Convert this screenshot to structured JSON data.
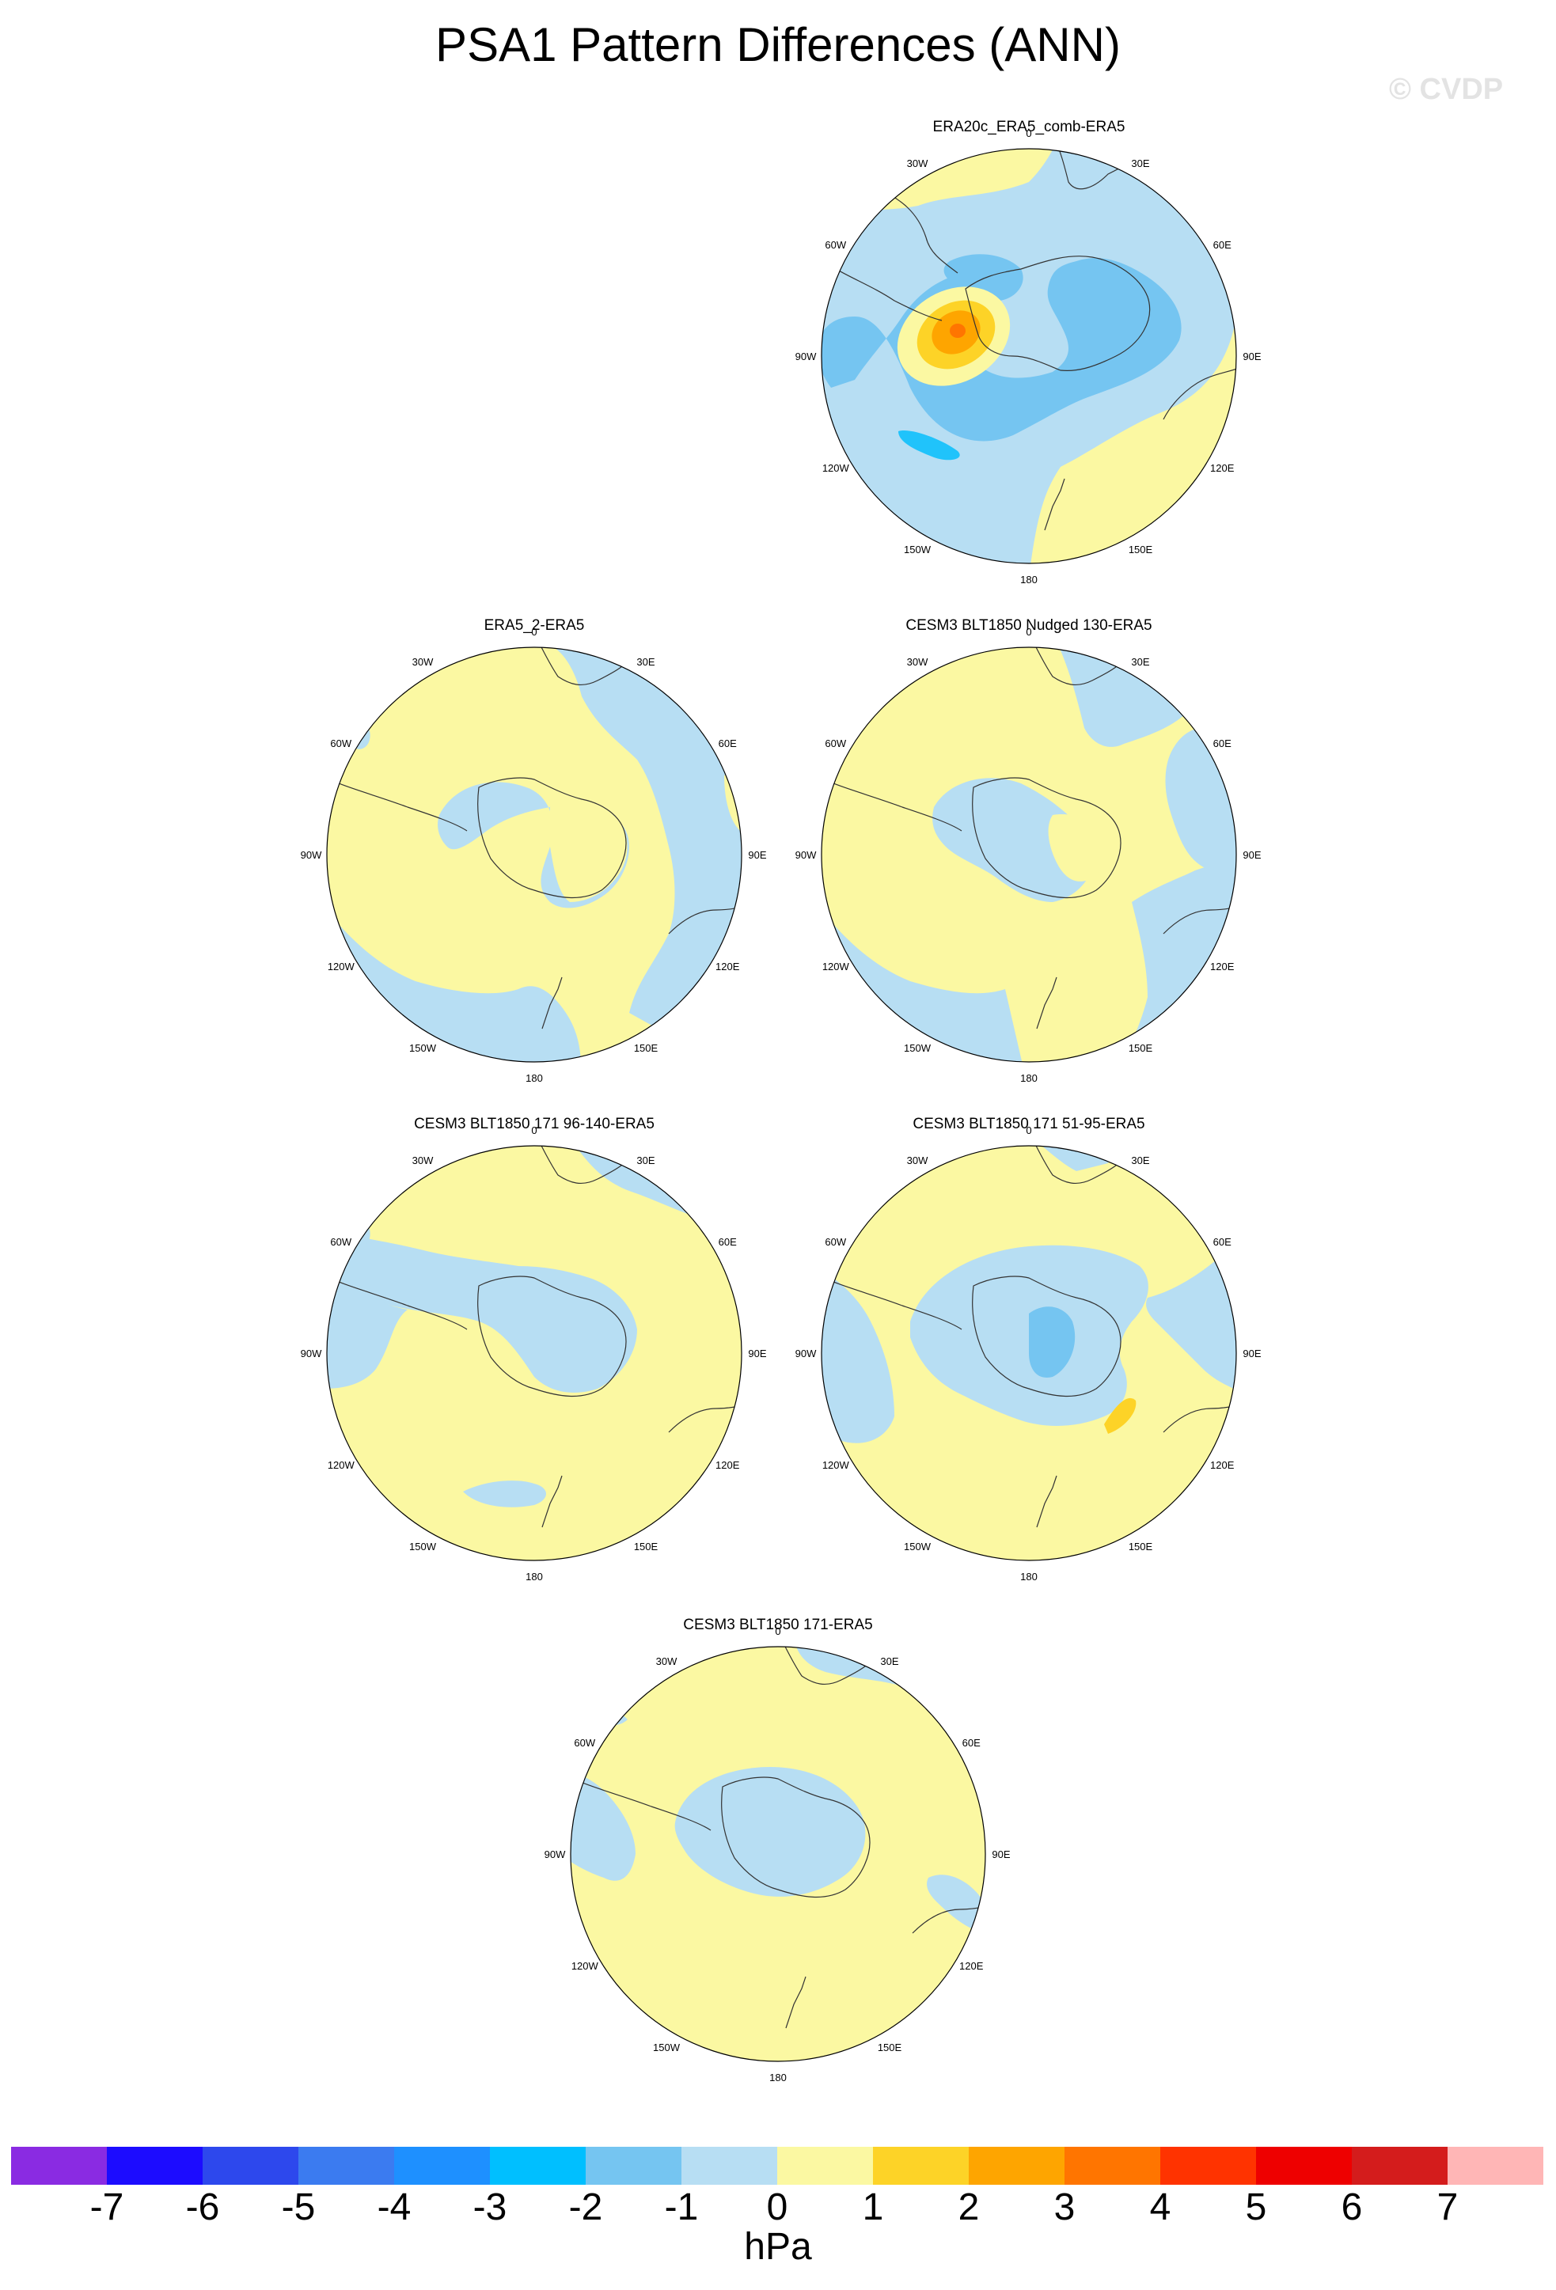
{
  "title": "PSA1 Pattern Differences (ANN)",
  "watermark": "© CVDP",
  "colors": {
    "neg1": "#b7def3",
    "neg2": "#75c5f1",
    "neg3": "#20c3fb",
    "pos1": "#fbf8a2",
    "pos2": "#fdd327",
    "pos3": "#fea500",
    "pos4": "#ff7500"
  },
  "lon_labels": [
    "0",
    "30E",
    "60E",
    "90E",
    "120E",
    "150E",
    "180",
    "150W",
    "120W",
    "90W",
    "60W",
    "30W"
  ],
  "panels": [
    {
      "title": "ERA20c_ERA5_comb-ERA5"
    },
    {
      "title": "ERA5_2-ERA5"
    },
    {
      "title": "CESM3 BLT1850 Nudged 130-ERA5"
    },
    {
      "title": "CESM3 BLT1850 171 96-140-ERA5"
    },
    {
      "title": "CESM3 BLT1850 171 51-95-ERA5"
    },
    {
      "title": "CESM3 BLT1850 171-ERA5"
    }
  ],
  "colorbar": {
    "units": "hPa",
    "ticks": [
      "-7",
      "-6",
      "-5",
      "-4",
      "-3",
      "-2",
      "-1",
      "0",
      "1",
      "2",
      "3",
      "4",
      "5",
      "6",
      "7"
    ],
    "colors": [
      "#8a2be2",
      "#1c0cff",
      "#2d48ed",
      "#3b7bf0",
      "#1e90ff",
      "#00bfff",
      "#75c5f1",
      "#b7def3",
      "#fbf8a2",
      "#fdd327",
      "#fea500",
      "#ff7500",
      "#ff3300",
      "#ee0000",
      "#d41c1c",
      "#ffb6b6"
    ]
  }
}
